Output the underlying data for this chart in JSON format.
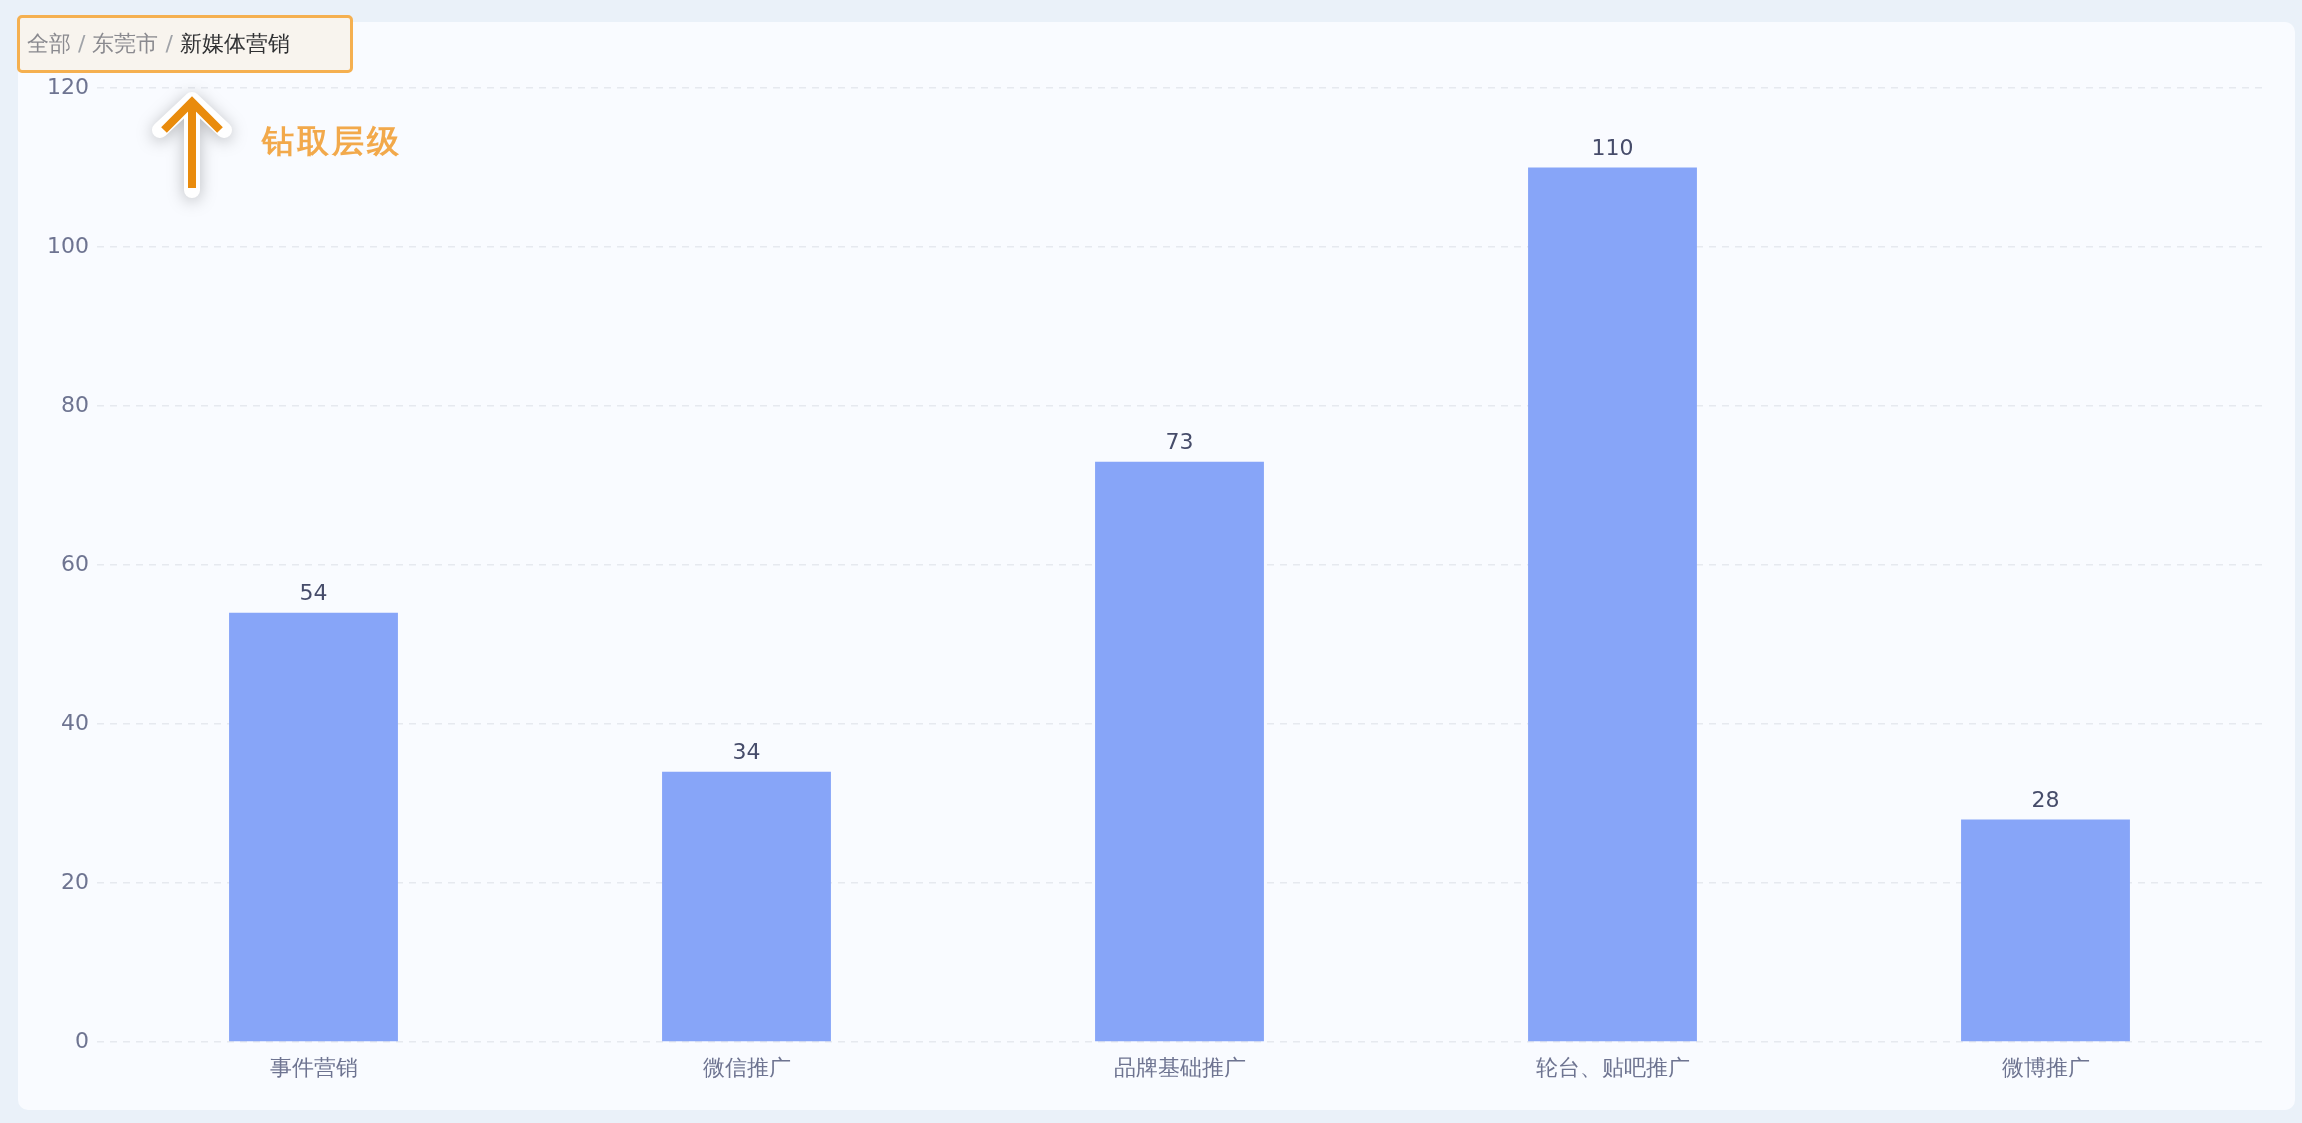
{
  "chart_data": {
    "type": "bar",
    "title": "全部 / 东莞市 / 新媒体营销",
    "annotations": [
      "钻取层级"
    ],
    "categories": [
      "事件营销",
      "微信推广",
      "品牌基础推广",
      "轮台、贴吧推广",
      "微博推广"
    ],
    "values": [
      54,
      34,
      73,
      110,
      28
    ],
    "color": "#87a5f8",
    "ylim": [
      0,
      120
    ],
    "yticks": [
      0,
      20,
      40,
      60,
      80,
      100,
      120
    ],
    "grid": "y",
    "data_labels": true,
    "legend": false
  }
}
